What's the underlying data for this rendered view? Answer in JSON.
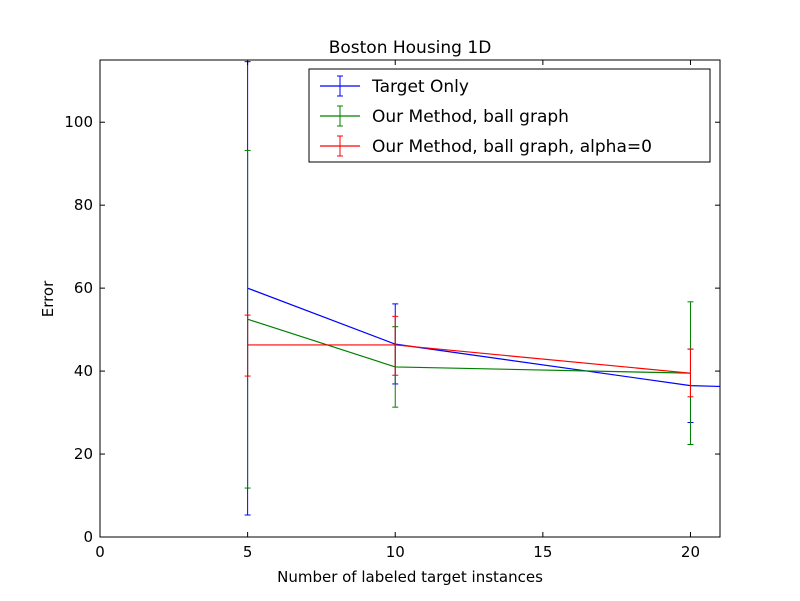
{
  "chart_data": {
    "type": "line",
    "title": "Boston Housing 1D",
    "xlabel": "Number of labeled target instances",
    "ylabel": "Error",
    "xlim": [
      0,
      21
    ],
    "ylim": [
      0,
      115
    ],
    "xticks": [
      0,
      5,
      10,
      15,
      20
    ],
    "yticks": [
      0,
      20,
      40,
      60,
      80,
      100
    ],
    "grid": false,
    "legend_position": "top-right",
    "series": [
      {
        "name": "Target Only",
        "color": "#0000ff",
        "x": [
          5,
          10,
          20,
          21
        ],
        "y": [
          60.0,
          46.5,
          36.5,
          36.3
        ],
        "err_low": [
          5.3,
          36.9,
          27.6,
          null
        ],
        "err_high": [
          114.6,
          56.2,
          45.3,
          null
        ]
      },
      {
        "name": "Our Method, ball graph",
        "color": "#008000",
        "x": [
          5,
          10,
          20
        ],
        "y": [
          52.5,
          41.0,
          39.5
        ],
        "err_low": [
          11.8,
          31.3,
          22.3
        ],
        "err_high": [
          93.2,
          50.7,
          56.7
        ]
      },
      {
        "name": "Our Method, ball graph, alpha=0",
        "color": "#ff0000",
        "x": [
          5,
          10,
          20
        ],
        "y": [
          46.3,
          46.3,
          39.5
        ],
        "err_low": [
          38.8,
          39.0,
          33.8
        ],
        "err_high": [
          53.5,
          53.2,
          45.3
        ]
      }
    ]
  }
}
